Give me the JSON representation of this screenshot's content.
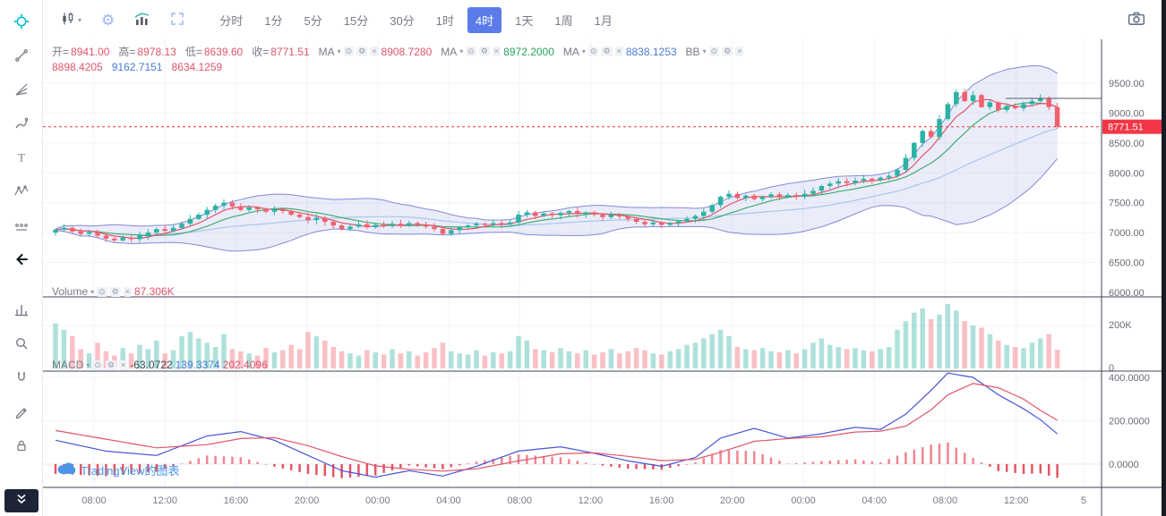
{
  "toolbar": {
    "timeframes": [
      "分时",
      "1分",
      "5分",
      "15分",
      "30分",
      "1时",
      "4时",
      "1天",
      "1周",
      "1月"
    ],
    "active_timeframe": "4时"
  },
  "icons": {
    "chevron_down": "▾",
    "eye": "⊙",
    "settings": "⚙",
    "close": "×"
  },
  "legend": {
    "ohlc": {
      "open_label": "开=",
      "open": "8941.00",
      "high_label": "高=",
      "high": "8978.13",
      "low_label": "低=",
      "low": "8639.60",
      "close_label": "收=",
      "close": "8771.51"
    },
    "ma": [
      {
        "label": "MA",
        "value": "8908.7280",
        "color": "#e0556a"
      },
      {
        "label": "MA",
        "value": "8972.2000",
        "color": "#2aa35f"
      },
      {
        "label": "MA",
        "value": "8838.1253",
        "color": "#4a7bd5"
      }
    ],
    "bb_label": "BB",
    "bb_values": [
      "8898.4205",
      "9162.7151",
      "8634.1259"
    ]
  },
  "volume_pane": {
    "label": "Volume",
    "value": "87.306K"
  },
  "macd_pane": {
    "label": "MACD",
    "hist": "-63.0722",
    "dif": "139.3374",
    "dea": "202.4096"
  },
  "watermark": {
    "text": "TradingView的图表"
  },
  "colors": {
    "candle_up": "#2bb3a4",
    "candle_down": "#f0616d",
    "band": "#8289d6",
    "ma_fast": "#e0556a",
    "ma_mid": "#3fae71",
    "ma_slow": "#a6c6ef",
    "macd_dif": "#4554d8",
    "macd_dea": "#e0556a",
    "active_button": "#5b7ce8",
    "price_tag": "#f23645"
  },
  "chart_data": {
    "type": "candlestick",
    "symbol_ohlc": {
      "open": 8941.0,
      "high": 8978.13,
      "low": 8639.6,
      "close": 8771.51
    },
    "last_price": 8771.51,
    "open0": 7000,
    "closes": [
      7050,
      7080,
      7020,
      6980,
      7010,
      6950,
      6900,
      6870,
      6920,
      6890,
      6950,
      7000,
      7060,
      7030,
      7080,
      7150,
      7230,
      7300,
      7380,
      7450,
      7500,
      7440,
      7380,
      7420,
      7390,
      7350,
      7400,
      7360,
      7300,
      7260,
      7210,
      7250,
      7180,
      7120,
      7060,
      7100,
      7140,
      7090,
      7130,
      7110,
      7150,
      7120,
      7160,
      7130,
      7100,
      7060,
      6980,
      7040,
      7090,
      7120,
      7150,
      7130,
      7160,
      7140,
      7170,
      7300,
      7340,
      7280,
      7320,
      7290,
      7330,
      7360,
      7310,
      7340,
      7300,
      7260,
      7300,
      7270,
      7230,
      7180,
      7140,
      7170,
      7130,
      7160,
      7190,
      7230,
      7280,
      7350,
      7460,
      7600,
      7650,
      7580,
      7620,
      7560,
      7600,
      7640,
      7590,
      7630,
      7600,
      7650,
      7700,
      7780,
      7820,
      7860,
      7830,
      7870,
      7900,
      7880,
      7920,
      7950,
      8050,
      8250,
      8500,
      8700,
      8600,
      8900,
      9150,
      9350,
      9200,
      9300,
      9100,
      9180,
      9050,
      9120,
      9080,
      9150,
      9200,
      9250,
      9100,
      8771.51
    ],
    "volumes_k": [
      210,
      180,
      150,
      90,
      70,
      120,
      80,
      60,
      95,
      70,
      110,
      90,
      130,
      70,
      85,
      150,
      170,
      140,
      120,
      100,
      160,
      90,
      80,
      70,
      60,
      95,
      75,
      85,
      110,
      90,
      170,
      150,
      130,
      100,
      80,
      70,
      60,
      85,
      75,
      65,
      90,
      70,
      80,
      60,
      75,
      95,
      120,
      80,
      70,
      65,
      85,
      60,
      75,
      70,
      80,
      150,
      130,
      90,
      85,
      75,
      95,
      80,
      70,
      85,
      65,
      75,
      90,
      70,
      80,
      95,
      85,
      70,
      65,
      80,
      90,
      110,
      120,
      140,
      160,
      180,
      150,
      100,
      90,
      85,
      95,
      80,
      75,
      85,
      70,
      90,
      120,
      140,
      110,
      100,
      90,
      95,
      85,
      80,
      90,
      100,
      180,
      220,
      260,
      280,
      230,
      250,
      300,
      270,
      220,
      200,
      190,
      160,
      130,
      110,
      100,
      95,
      120,
      140,
      160,
      87.306
    ],
    "price_axis_ticks": [
      9500,
      9000,
      8500,
      8000,
      7500,
      7000,
      6500,
      6000
    ],
    "volume_axis": [
      {
        "label": "200K",
        "value": 200
      },
      {
        "label": "0",
        "value": 0
      }
    ],
    "macd": {
      "axis": [
        400,
        200,
        0
      ],
      "legend": {
        "hist": -63.0722,
        "dif": 139.3374,
        "dea": 202.4096
      },
      "dif_points": [
        [
          0,
          110
        ],
        [
          6,
          60
        ],
        [
          12,
          40
        ],
        [
          18,
          130
        ],
        [
          22,
          150
        ],
        [
          26,
          110
        ],
        [
          30,
          40
        ],
        [
          34,
          -30
        ],
        [
          38,
          -60
        ],
        [
          42,
          -30
        ],
        [
          46,
          -55
        ],
        [
          50,
          -10
        ],
        [
          55,
          60
        ],
        [
          60,
          80
        ],
        [
          64,
          50
        ],
        [
          68,
          15
        ],
        [
          72,
          -10
        ],
        [
          76,
          30
        ],
        [
          79,
          120
        ],
        [
          83,
          165
        ],
        [
          87,
          120
        ],
        [
          91,
          140
        ],
        [
          95,
          170
        ],
        [
          98,
          160
        ],
        [
          101,
          230
        ],
        [
          104,
          340
        ],
        [
          106,
          420
        ],
        [
          109,
          400
        ],
        [
          112,
          320
        ],
        [
          115,
          255
        ],
        [
          117,
          205
        ],
        [
          119,
          139.3374
        ]
      ],
      "dea_points": [
        [
          0,
          155
        ],
        [
          6,
          115
        ],
        [
          12,
          75
        ],
        [
          18,
          90
        ],
        [
          22,
          118
        ],
        [
          26,
          122
        ],
        [
          30,
          85
        ],
        [
          34,
          35
        ],
        [
          38,
          -8
        ],
        [
          42,
          -24
        ],
        [
          46,
          -32
        ],
        [
          50,
          -22
        ],
        [
          55,
          15
        ],
        [
          60,
          48
        ],
        [
          64,
          52
        ],
        [
          68,
          36
        ],
        [
          72,
          16
        ],
        [
          76,
          22
        ],
        [
          79,
          55
        ],
        [
          83,
          105
        ],
        [
          87,
          118
        ],
        [
          91,
          126
        ],
        [
          95,
          148
        ],
        [
          98,
          152
        ],
        [
          101,
          175
        ],
        [
          104,
          250
        ],
        [
          106,
          320
        ],
        [
          109,
          372
        ],
        [
          112,
          352
        ],
        [
          115,
          300
        ],
        [
          117,
          248
        ],
        [
          119,
          202.4096
        ]
      ]
    },
    "time_labels": [
      "08:00",
      "12:00",
      "16:00",
      "20:00",
      "00:00",
      "04:00",
      "08:00",
      "12:00",
      "16:00",
      "20:00",
      "00:00",
      "04:00",
      "08:00",
      "12:00",
      "5"
    ]
  }
}
